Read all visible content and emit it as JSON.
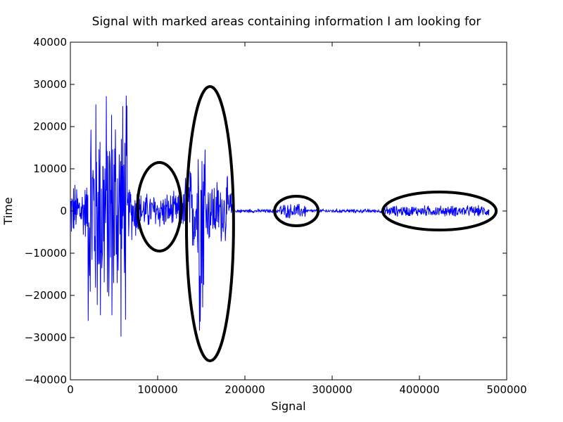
{
  "chart_data": {
    "type": "line",
    "title": "Signal with marked areas containing information I am looking for",
    "xlabel": "Signal",
    "ylabel": "Time",
    "xlim": [
      0,
      500000
    ],
    "ylim": [
      -40000,
      40000
    ],
    "xticks": [
      0,
      100000,
      200000,
      300000,
      400000,
      500000
    ],
    "xtick_labels": [
      "0",
      "100000",
      "200000",
      "300000",
      "400000",
      "500000"
    ],
    "yticks": [
      -40000,
      -30000,
      -20000,
      -10000,
      0,
      10000,
      20000,
      30000,
      40000
    ],
    "ytick_labels": [
      "−40000",
      "−30000",
      "−20000",
      "−10000",
      "0",
      "10000",
      "20000",
      "30000",
      "40000"
    ],
    "grid": false,
    "series": [
      {
        "color": "#0000ff",
        "segments": [
          {
            "x_range": [
              0,
              20000
            ],
            "amplitude": 8000
          },
          {
            "x_range": [
              20000,
              65000
            ],
            "amplitude": 32768
          },
          {
            "x_range": [
              65000,
              80000
            ],
            "amplitude": 8000
          },
          {
            "x_range": [
              80000,
              130000
            ],
            "amplitude": 5000
          },
          {
            "x_range": [
              130000,
              145000
            ],
            "amplitude": 12000
          },
          {
            "x_range": [
              145000,
              155000
            ],
            "amplitude": 32000
          },
          {
            "x_range": [
              155000,
              185000
            ],
            "amplitude": 9000
          },
          {
            "x_range": [
              185000,
              240000
            ],
            "amplitude": 500
          },
          {
            "x_range": [
              240000,
              270000
            ],
            "amplitude": 2000
          },
          {
            "x_range": [
              270000,
              360000
            ],
            "amplitude": 500
          },
          {
            "x_range": [
              360000,
              480000
            ],
            "amplitude": 1500
          }
        ],
        "x_max": 480000
      }
    ],
    "annotations": [
      {
        "type": "ellipse",
        "color": "#000000",
        "center": [
          102000,
          1000
        ],
        "radius_x": 25000,
        "radius_y": 10500
      },
      {
        "type": "ellipse",
        "color": "#000000",
        "center": [
          160000,
          -3000
        ],
        "radius_x": 27000,
        "radius_y": 32500
      },
      {
        "type": "ellipse",
        "color": "#000000",
        "center": [
          259000,
          0
        ],
        "radius_x": 25000,
        "radius_y": 3500
      },
      {
        "type": "ellipse",
        "color": "#000000",
        "center": [
          423000,
          0
        ],
        "radius_x": 65000,
        "radius_y": 4500
      }
    ]
  }
}
